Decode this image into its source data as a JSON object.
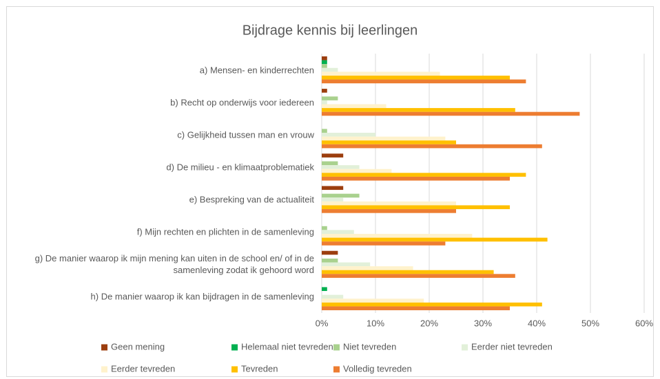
{
  "chart_data": {
    "type": "hbar",
    "title": "Bijdrage kennis bij leerlingen",
    "categories": [
      "a) Mensen- en kinderrechten",
      "b) Recht op onderwijs voor iedereen",
      "c) Gelijkheid tussen man en vrouw",
      "d) De milieu - en klimaatproblematiek",
      "e) Bespreking van de actualiteit",
      "f) Mijn rechten en plichten in de samenleving",
      "g) De manier waarop ik mijn mening kan uiten in de school en/ of in de samenleving zodat ik gehoord word",
      "h) De manier waarop ik kan bijdragen in de samenleving"
    ],
    "series": [
      {
        "name": "Geen mening",
        "color": "#9c3e0e",
        "values": [
          1,
          1,
          0,
          4,
          4,
          0,
          3,
          0
        ]
      },
      {
        "name": "Helemaal niet tevreden",
        "color": "#00b050",
        "values": [
          1,
          0,
          0,
          0,
          0,
          0,
          0,
          1
        ]
      },
      {
        "name": "Niet tevreden",
        "color": "#a9d18e",
        "values": [
          1,
          3,
          1,
          3,
          7,
          1,
          3,
          0
        ]
      },
      {
        "name": "Eerder niet tevreden",
        "color": "#e2f0d9",
        "values": [
          3,
          1,
          10,
          7,
          4,
          6,
          9,
          4
        ]
      },
      {
        "name": "Eerder tevreden",
        "color": "#fff2cc",
        "values": [
          22,
          12,
          23,
          13,
          25,
          28,
          17,
          19
        ]
      },
      {
        "name": "Tevreden",
        "color": "#ffc000",
        "values": [
          35,
          36,
          25,
          38,
          35,
          42,
          32,
          41
        ]
      },
      {
        "name": "Volledig tevreden",
        "color": "#ed7d31",
        "values": [
          38,
          48,
          41,
          35,
          25,
          23,
          36,
          35
        ]
      }
    ],
    "xlim": [
      0,
      60
    ],
    "xticks": [
      {
        "value": 0,
        "label": "0%"
      },
      {
        "value": 10,
        "label": "10%"
      },
      {
        "value": 20,
        "label": "20%"
      },
      {
        "value": 30,
        "label": "30%"
      },
      {
        "value": 40,
        "label": "40%"
      },
      {
        "value": 50,
        "label": "50%"
      },
      {
        "value": 60,
        "label": "60%"
      }
    ],
    "grid": true,
    "legend": "bottom"
  }
}
